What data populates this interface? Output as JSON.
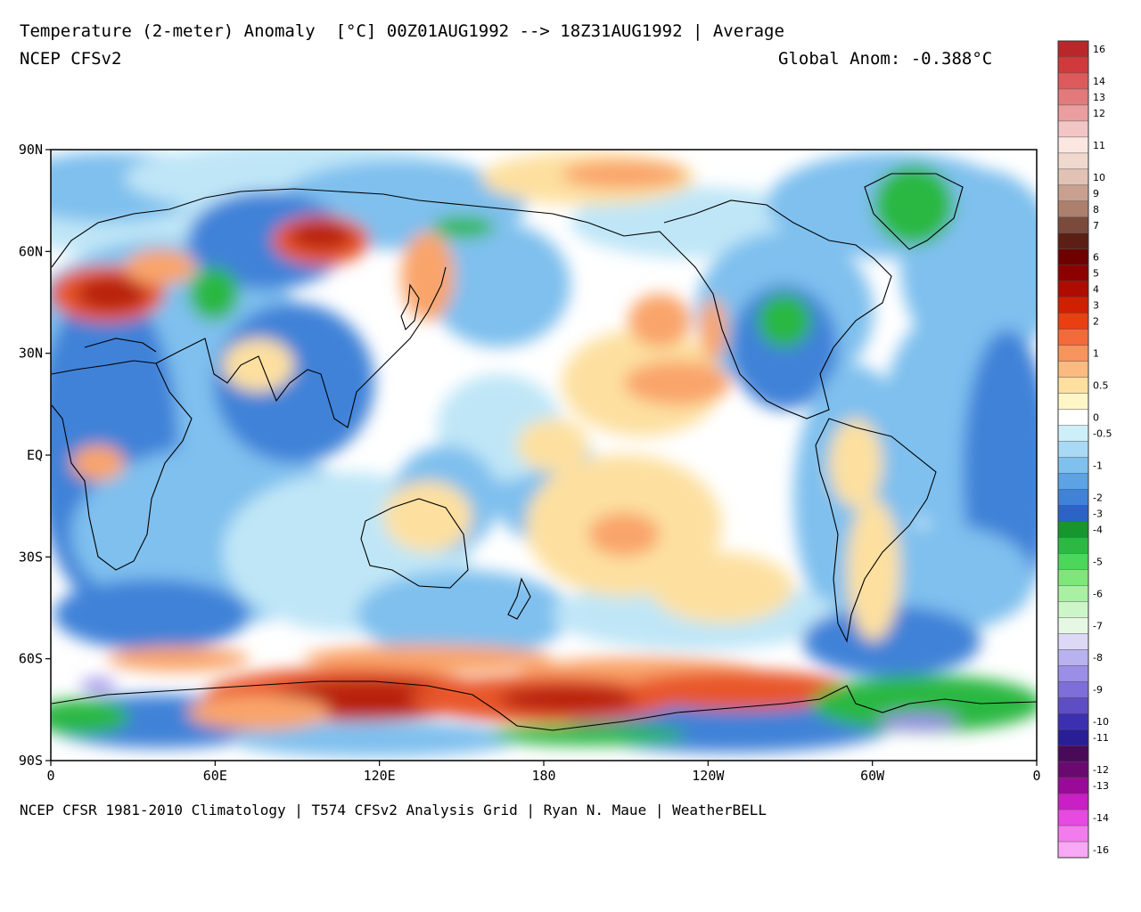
{
  "header": {
    "title": "Temperature (2-meter) Anomaly  [°C] 00Z01AUG1992 --> 18Z31AUG1992 | Average",
    "model": "NCEP CFSv2",
    "global_anom": "Global Anom: -0.388°C"
  },
  "footer": {
    "credits": "NCEP CFSR 1981-2010 Climatology | T574 CFSv2 Analysis Grid | Ryan N. Maue | WeatherBELL"
  },
  "map": {
    "projection": "cylindrical equidistant, 0 to 360 longitude",
    "lat_ticks": [
      "90N",
      "60N",
      "30N",
      "EQ",
      "30S",
      "60S",
      "90S"
    ],
    "lon_ticks": [
      "0",
      "60E",
      "120E",
      "180",
      "120W",
      "60W",
      "0"
    ],
    "background_color": "#ffffff"
  },
  "colorbar": {
    "bins": [
      {
        "color": "#b8282a",
        "label": "16"
      },
      {
        "color": "#d03a3c",
        "label": ""
      },
      {
        "color": "#dc5a5c",
        "label": "14"
      },
      {
        "color": "#e27a7c",
        "label": "13"
      },
      {
        "color": "#ea9ea0",
        "label": "12"
      },
      {
        "color": "#f3c6c6",
        "label": ""
      },
      {
        "color": "#fbe6e2",
        "label": "11"
      },
      {
        "color": "#efd9cf",
        "label": ""
      },
      {
        "color": "#e2c2b4",
        "label": "10"
      },
      {
        "color": "#c9a090",
        "label": "9"
      },
      {
        "color": "#ad7f6d",
        "label": "8"
      },
      {
        "color": "#7a4a3c",
        "label": "7"
      },
      {
        "color": "#5c1f16",
        "label": ""
      },
      {
        "color": "#6e0000",
        "label": "6"
      },
      {
        "color": "#8c0000",
        "label": "5"
      },
      {
        "color": "#ae0c00",
        "label": "4"
      },
      {
        "color": "#d02000",
        "label": "3"
      },
      {
        "color": "#e84010",
        "label": "2"
      },
      {
        "color": "#f26a3a",
        "label": ""
      },
      {
        "color": "#f7935c",
        "label": "1"
      },
      {
        "color": "#fbbb80",
        "label": ""
      },
      {
        "color": "#fde0a0",
        "label": "0.5"
      },
      {
        "color": "#fff6c8",
        "label": ""
      },
      {
        "color": "#ffffff",
        "label": "0"
      },
      {
        "color": "#cdeffa",
        "label": "-0.5"
      },
      {
        "color": "#a9daf5",
        "label": ""
      },
      {
        "color": "#7fc0ee",
        "label": "-1"
      },
      {
        "color": "#5ca2e4",
        "label": ""
      },
      {
        "color": "#3f82d8",
        "label": "-2"
      },
      {
        "color": "#2c64c6",
        "label": "-3"
      },
      {
        "color": "#16962c",
        "label": "-4"
      },
      {
        "color": "#2cb842",
        "label": ""
      },
      {
        "color": "#4cd65a",
        "label": "-5"
      },
      {
        "color": "#7fe67a",
        "label": ""
      },
      {
        "color": "#a8f0a2",
        "label": "-6"
      },
      {
        "color": "#cdf6c8",
        "label": ""
      },
      {
        "color": "#e6f8e4",
        "label": "-7"
      },
      {
        "color": "#dcd8f6",
        "label": ""
      },
      {
        "color": "#b8b2f0",
        "label": "-8"
      },
      {
        "color": "#9a8ee6",
        "label": ""
      },
      {
        "color": "#7e6ed8",
        "label": "-9"
      },
      {
        "color": "#5e4ec4",
        "label": ""
      },
      {
        "color": "#3c30b0",
        "label": "-10"
      },
      {
        "color": "#2a1e96",
        "label": "-11"
      },
      {
        "color": "#4a0a5a",
        "label": ""
      },
      {
        "color": "#6a0a70",
        "label": "-12"
      },
      {
        "color": "#9a0a98",
        "label": "-13"
      },
      {
        "color": "#c820c4",
        "label": ""
      },
      {
        "color": "#e64ae0",
        "label": "-14"
      },
      {
        "color": "#f27cee",
        "label": ""
      },
      {
        "color": "#f8a8f4",
        "label": "-16"
      }
    ]
  },
  "anomaly_colors": {
    "strong_warm": "#b8230f",
    "warm": "#e8572b",
    "mild_warm": "#f9a46b",
    "slight_warm": "#fde0a0",
    "neutral": "#ffffff",
    "slight_cool": "#bfe6f7",
    "cool": "#7fc0ee",
    "cold": "#3f82d8",
    "very_cold": "#2c64c6",
    "extreme_cold": "#2cb842",
    "record_cold": "#9a8ee6",
    "coastline": "#000000"
  }
}
